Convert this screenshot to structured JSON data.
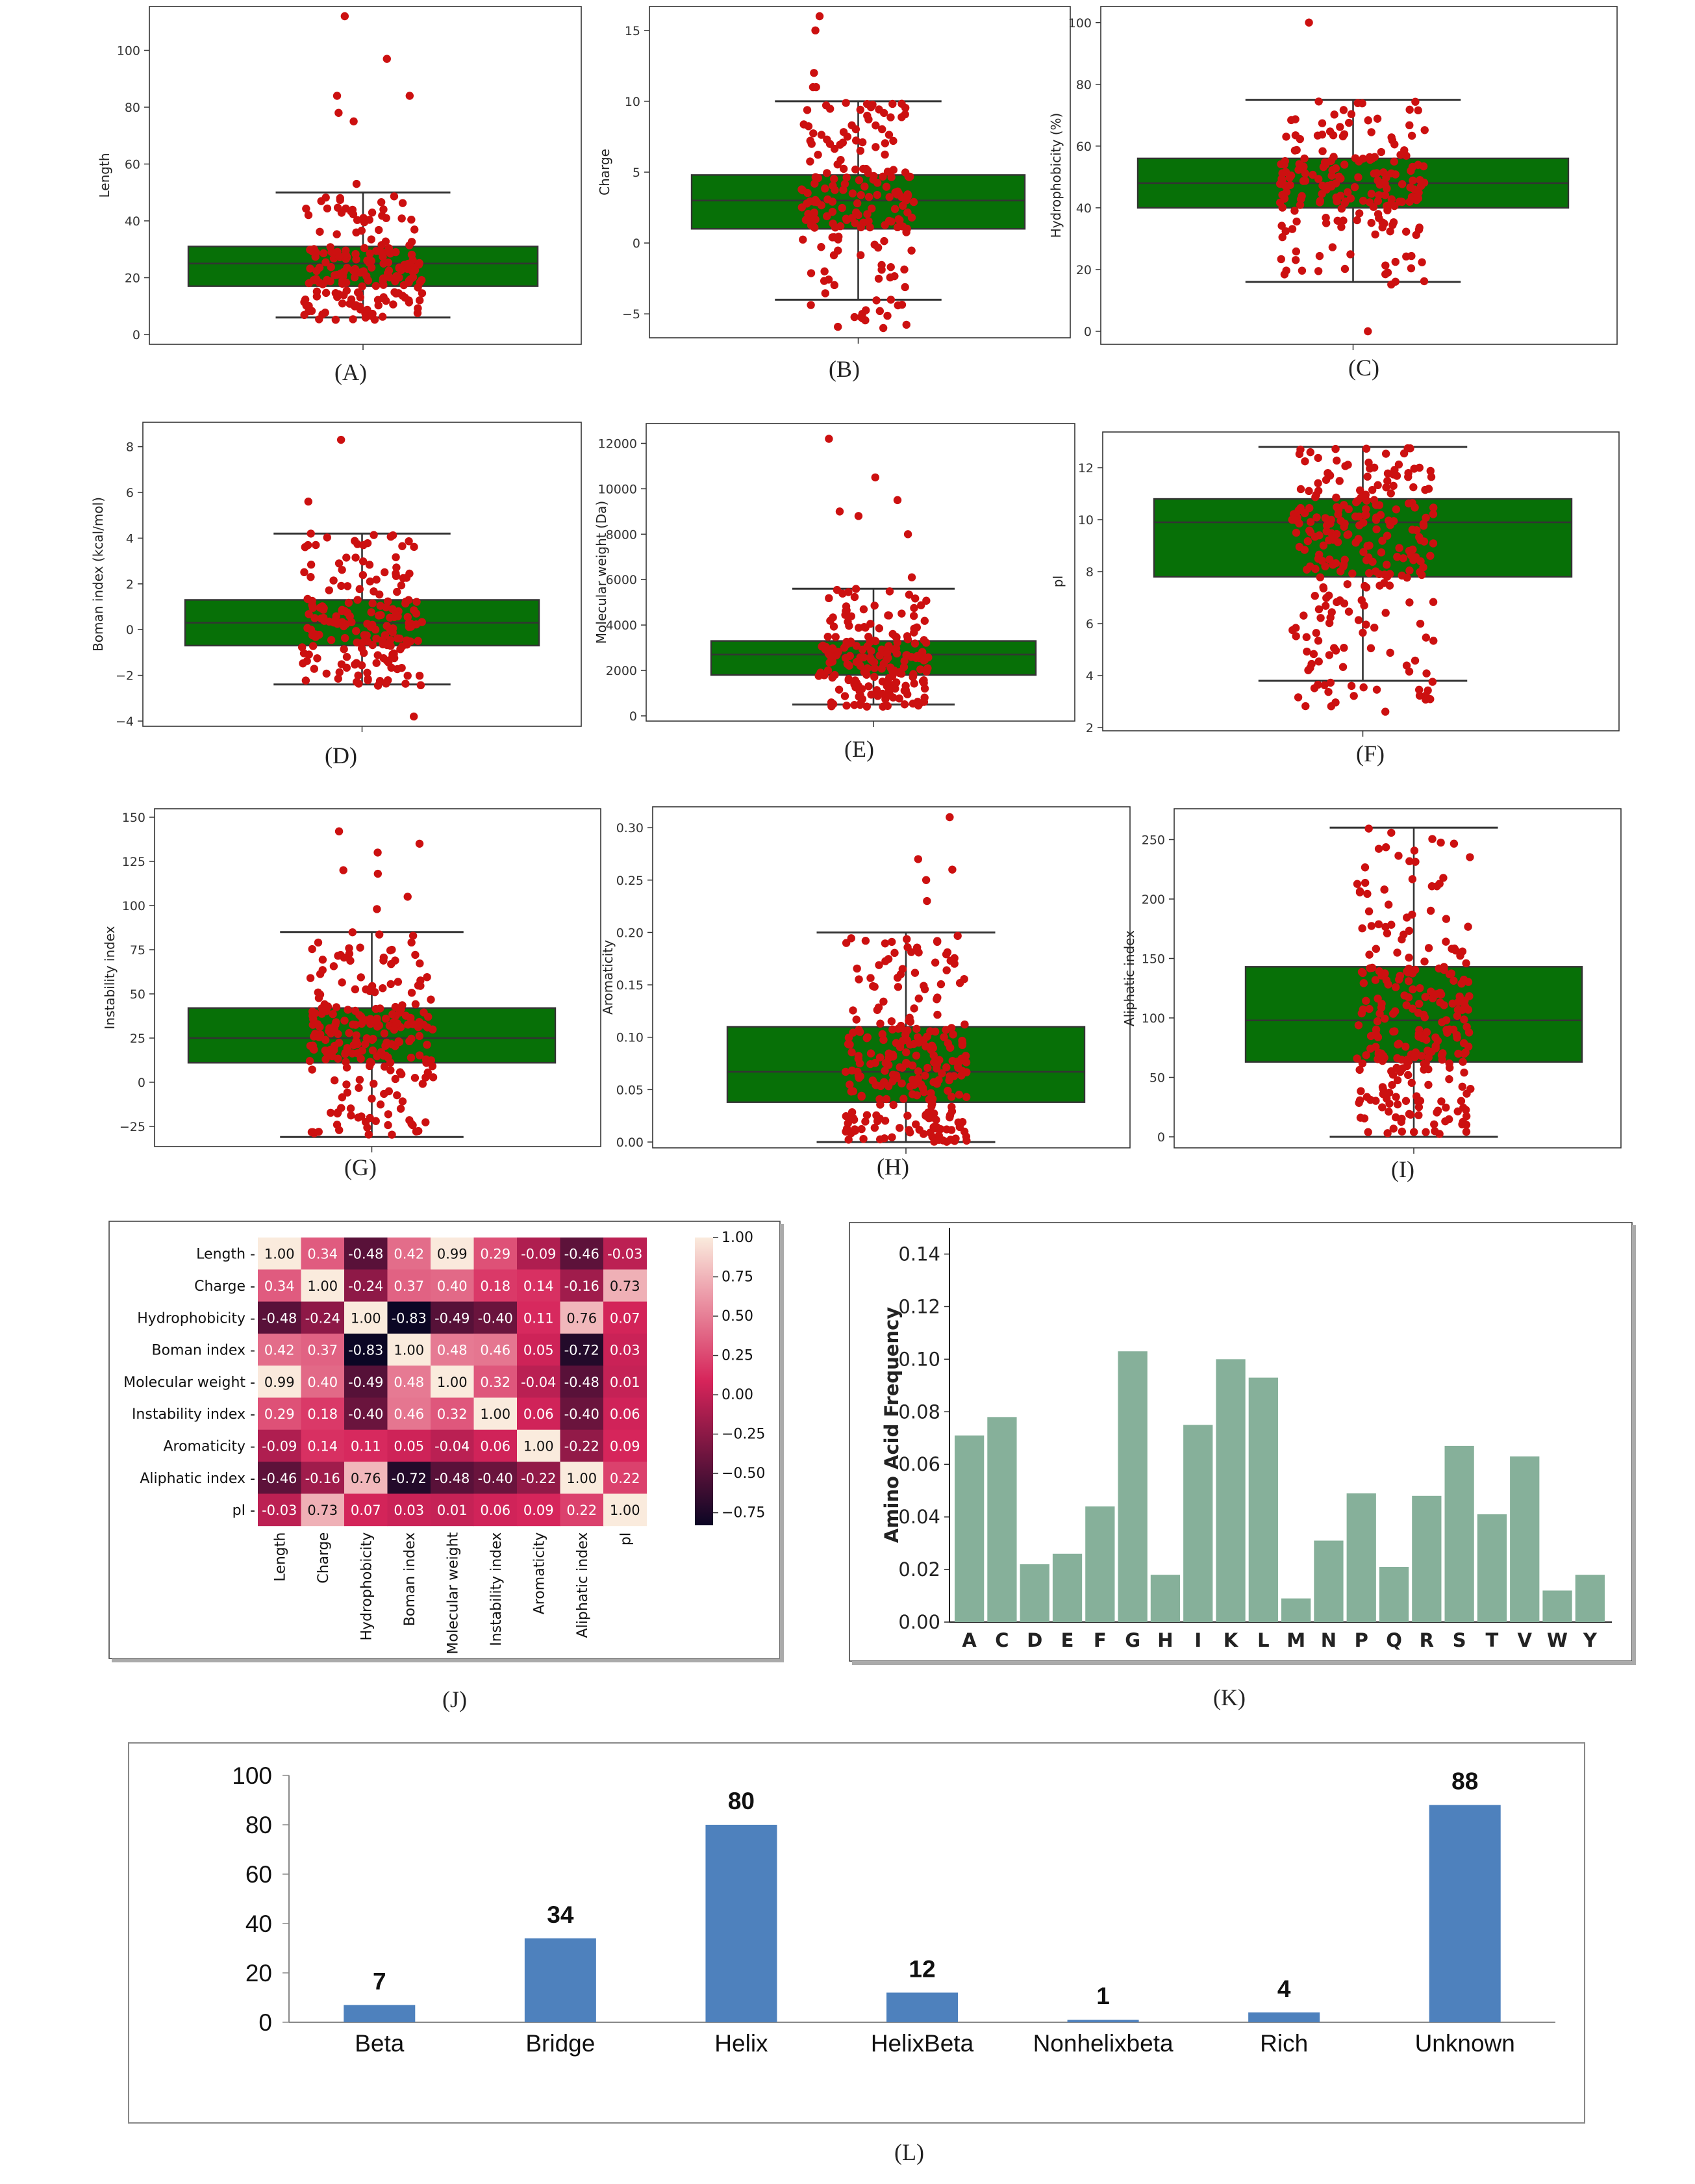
{
  "chart_data": [
    {
      "id": "A",
      "type": "box",
      "caption": "(A)",
      "ylabel": "Length",
      "ylim": [
        0,
        112
      ],
      "yticks": [
        0,
        20,
        40,
        60,
        80,
        100
      ],
      "box": {
        "min": 6,
        "q1": 17,
        "median": 25,
        "q3": 31,
        "max": 50
      },
      "points_range": [
        5,
        112
      ],
      "outliers": [
        53,
        75,
        78,
        84,
        84,
        97,
        112
      ]
    },
    {
      "id": "B",
      "type": "box",
      "caption": "(B)",
      "ylabel": "Charge",
      "ylim": [
        -6,
        16
      ],
      "yticks": [
        -5,
        0,
        5,
        10,
        15
      ],
      "box": {
        "min": -4,
        "q1": 1,
        "median": 3,
        "q3": 4.8,
        "max": 10
      },
      "points_range": [
        -6,
        16
      ],
      "outliers": [
        -6,
        -5,
        11,
        11,
        12,
        15,
        16
      ]
    },
    {
      "id": "C",
      "type": "box",
      "caption": "(C)",
      "ylabel": "Hydrophobicity  (%)",
      "ylim": [
        0,
        101
      ],
      "yticks": [
        0,
        20,
        40,
        60,
        80,
        100
      ],
      "box": {
        "min": 16,
        "q1": 40,
        "median": 48,
        "q3": 56,
        "max": 75
      },
      "points_range": [
        15,
        76
      ],
      "outliers": [
        0,
        100
      ]
    },
    {
      "id": "D",
      "type": "box",
      "caption": "(D)",
      "ylabel": "Boman index  (kcal/mol)",
      "ylim": [
        -4,
        8.5
      ],
      "yticks": [
        -4,
        -2,
        0,
        2,
        4,
        6,
        8
      ],
      "box": {
        "min": -2.4,
        "q1": -0.7,
        "median": 0.3,
        "q3": 1.3,
        "max": 4.2
      },
      "points_range": [
        -2.5,
        4.4
      ],
      "outliers": [
        -3.8,
        5.6,
        8.3
      ]
    },
    {
      "id": "E",
      "type": "box",
      "caption": "(E)",
      "ylabel": "Molecular weight  (Da)",
      "ylim": [
        0,
        12300
      ],
      "yticks": [
        0,
        2000,
        4000,
        6000,
        8000,
        10000,
        12000
      ],
      "box": {
        "min": 500,
        "q1": 1800,
        "median": 2700,
        "q3": 3300,
        "max": 5600
      },
      "points_range": [
        400,
        5900
      ],
      "outliers": [
        6100,
        8000,
        8800,
        9000,
        9500,
        10500,
        12200
      ]
    },
    {
      "id": "F",
      "type": "box",
      "caption": "(F)",
      "ylabel": "pI",
      "ylim": [
        2,
        13
      ],
      "yticks": [
        2,
        4,
        6,
        8,
        10,
        12
      ],
      "box": {
        "min": 3.8,
        "q1": 7.8,
        "median": 9.9,
        "q3": 10.8,
        "max": 12.8
      },
      "points_range": [
        2.6,
        12.8
      ],
      "outliers": []
    },
    {
      "id": "G",
      "type": "box",
      "caption": "(G)",
      "ylabel": "Instability index",
      "ylim": [
        -32,
        150
      ],
      "yticks": [
        -25,
        0,
        25,
        50,
        75,
        100,
        125,
        150
      ],
      "box": {
        "min": -31,
        "q1": 11,
        "median": 25,
        "q3": 42,
        "max": 85
      },
      "points_range": [
        -30,
        92
      ],
      "outliers": [
        98,
        105,
        118,
        120,
        130,
        135,
        142
      ]
    },
    {
      "id": "H",
      "type": "box",
      "caption": "(H)",
      "ylabel": "Aromaticity",
      "ylim": [
        0,
        0.31
      ],
      "yticks": [
        0.0,
        0.05,
        0.1,
        0.15,
        0.2,
        0.25,
        0.3
      ],
      "box": {
        "min": 0.0,
        "q1": 0.038,
        "median": 0.067,
        "q3": 0.11,
        "max": 0.2
      },
      "points_range": [
        0.0,
        0.2
      ],
      "outliers": [
        0.23,
        0.25,
        0.26,
        0.27,
        0.31
      ]
    },
    {
      "id": "I",
      "type": "box",
      "caption": "(I)",
      "ylabel": "Aliphatic index",
      "ylim": [
        0,
        265
      ],
      "yticks": [
        0,
        50,
        100,
        150,
        200,
        250
      ],
      "box": {
        "min": 0,
        "q1": 63,
        "median": 98,
        "q3": 143,
        "max": 260
      },
      "points_range": [
        0,
        265
      ],
      "outliers": []
    },
    {
      "id": "J",
      "type": "heatmap",
      "caption": "(J)",
      "labels": [
        "Length",
        "Charge",
        "Hydrophobicity",
        "Boman index",
        "Molecular weight",
        "Instability index",
        "Aromaticity",
        "Aliphatic index",
        "pI"
      ],
      "matrix": [
        [
          1.0,
          0.34,
          -0.48,
          0.42,
          0.99,
          0.29,
          -0.09,
          -0.46,
          -0.03
        ],
        [
          0.34,
          1.0,
          -0.24,
          0.37,
          0.4,
          0.18,
          0.14,
          -0.16,
          0.73
        ],
        [
          -0.48,
          -0.24,
          1.0,
          -0.83,
          -0.49,
          -0.4,
          0.11,
          0.76,
          0.07
        ],
        [
          0.42,
          0.37,
          -0.83,
          1.0,
          0.48,
          0.46,
          0.05,
          -0.72,
          0.03
        ],
        [
          0.99,
          0.4,
          -0.49,
          0.48,
          1.0,
          0.32,
          -0.04,
          -0.48,
          0.01
        ],
        [
          0.29,
          0.18,
          -0.4,
          0.46,
          0.32,
          1.0,
          0.06,
          -0.4,
          0.06
        ],
        [
          -0.09,
          0.14,
          0.11,
          0.05,
          -0.04,
          0.06,
          1.0,
          -0.22,
          0.09
        ],
        [
          -0.46,
          -0.16,
          0.76,
          -0.72,
          -0.48,
          -0.4,
          -0.22,
          1.0,
          0.22
        ],
        [
          -0.03,
          0.73,
          0.07,
          0.03,
          0.01,
          0.06,
          0.09,
          0.22,
          1.0
        ]
      ],
      "colorbar_ticks": [
        1.0,
        0.75,
        0.5,
        0.25,
        0.0,
        -0.25,
        -0.5,
        -0.75
      ],
      "colorbar_labels": [
        "1.00",
        "0.75",
        "0.50",
        "0.25",
        "0.00",
        "−0.25",
        "−0.50",
        "−0.75"
      ],
      "vmin": -0.83,
      "vmax": 1.0
    },
    {
      "id": "K",
      "type": "bar",
      "caption": "(K)",
      "ylabel": "Amino Acid Frequency",
      "ylim": [
        0,
        0.15
      ],
      "yticks": [
        0.0,
        0.02,
        0.04,
        0.06,
        0.08,
        0.1,
        0.12,
        0.14
      ],
      "categories": [
        "A",
        "C",
        "D",
        "E",
        "F",
        "G",
        "H",
        "I",
        "K",
        "L",
        "M",
        "N",
        "P",
        "Q",
        "R",
        "S",
        "T",
        "V",
        "W",
        "Y"
      ],
      "values": [
        0.071,
        0.078,
        0.022,
        0.026,
        0.044,
        0.103,
        0.018,
        0.075,
        0.1,
        0.093,
        0.009,
        0.031,
        0.049,
        0.021,
        0.048,
        0.067,
        0.041,
        0.063,
        0.012,
        0.018
      ],
      "color": "#86b09a"
    },
    {
      "id": "L",
      "type": "bar",
      "caption": "(L)",
      "ylim": [
        0,
        100
      ],
      "yticks": [
        0,
        20,
        40,
        60,
        80,
        100
      ],
      "categories": [
        "Beta",
        "Bridge",
        "Helix",
        "HelixBeta",
        "Nonhelixbeta",
        "Rich",
        "Unknown"
      ],
      "values": [
        7,
        34,
        80,
        12,
        1,
        4,
        88
      ],
      "value_labels": [
        "7",
        "34",
        "80",
        "12",
        "1",
        "4",
        "88"
      ],
      "color": "#4e81bd"
    }
  ],
  "colors": {
    "box_fill": "#077007",
    "point": "#cc1010",
    "whisker": "#333333",
    "heat_low": "#0b0624",
    "heat_mid": "#d6245a",
    "heat_high": "#faebdd"
  }
}
